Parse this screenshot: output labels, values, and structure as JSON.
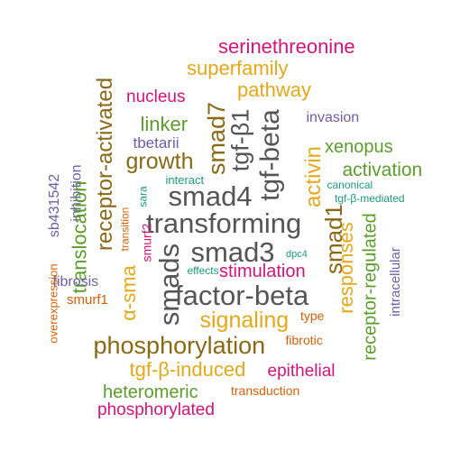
{
  "colors": {
    "gray": "#555555",
    "brown": "#8B6914",
    "gold": "#E6A817",
    "green": "#5A9E2A",
    "magenta": "#D4137A",
    "purple": "#6A5FA8",
    "teal": "#1A9E77",
    "orange": "#D95F02"
  },
  "words": [
    {
      "text": "serinethreonine",
      "color": "magenta",
      "rotated": false
    },
    {
      "text": "superfamily",
      "color": "gold",
      "rotated": false
    },
    {
      "text": "pathway",
      "color": "gold",
      "rotated": false
    },
    {
      "text": "nucleus",
      "color": "magenta",
      "rotated": false
    },
    {
      "text": "receptor-activated",
      "color": "brown",
      "rotated": true
    },
    {
      "text": "smad7",
      "color": "brown",
      "rotated": true
    },
    {
      "text": "tgf-β1",
      "color": "gray",
      "rotated": true
    },
    {
      "text": "tgf-beta",
      "color": "gray",
      "rotated": true
    },
    {
      "text": "invasion",
      "color": "purple",
      "rotated": false
    },
    {
      "text": "linker",
      "color": "green",
      "rotated": false
    },
    {
      "text": "tbetarii",
      "color": "purple",
      "rotated": false
    },
    {
      "text": "growth",
      "color": "brown",
      "rotated": false
    },
    {
      "text": "activin",
      "color": "gold",
      "rotated": true
    },
    {
      "text": "xenopus",
      "color": "green",
      "rotated": false
    },
    {
      "text": "activation",
      "color": "green",
      "rotated": false
    },
    {
      "text": "canonical",
      "color": "teal",
      "rotated": false
    },
    {
      "text": "tgf-β-mediated",
      "color": "teal",
      "rotated": false
    },
    {
      "text": "inhibition",
      "color": "purple",
      "rotated": true
    },
    {
      "text": "sb431542",
      "color": "purple",
      "rotated": true
    },
    {
      "text": "translocation",
      "color": "green",
      "rotated": true
    },
    {
      "text": "interact",
      "color": "teal",
      "rotated": false
    },
    {
      "text": "sara",
      "color": "teal",
      "rotated": true
    },
    {
      "text": "smad4",
      "color": "gray",
      "rotated": false
    },
    {
      "text": "transforming",
      "color": "gray",
      "rotated": false
    },
    {
      "text": "smad1",
      "color": "brown",
      "rotated": true
    },
    {
      "text": "transition",
      "color": "orange",
      "rotated": true
    },
    {
      "text": "smurf2",
      "color": "magenta",
      "rotated": true
    },
    {
      "text": "smad3",
      "color": "gray",
      "rotated": false
    },
    {
      "text": "dpc4",
      "color": "teal",
      "rotated": false
    },
    {
      "text": "responses",
      "color": "gold",
      "rotated": true
    },
    {
      "text": "receptor-regulated",
      "color": "green",
      "rotated": true
    },
    {
      "text": "intracellular",
      "color": "purple",
      "rotated": true
    },
    {
      "text": "fibrosis",
      "color": "purple",
      "rotated": false
    },
    {
      "text": "smurf1",
      "color": "orange",
      "rotated": false
    },
    {
      "text": "overexpression",
      "color": "orange",
      "rotated": true
    },
    {
      "text": "α-sma",
      "color": "gold",
      "rotated": true
    },
    {
      "text": "smads",
      "color": "gray",
      "rotated": true
    },
    {
      "text": "effects",
      "color": "teal",
      "rotated": false
    },
    {
      "text": "stimulation",
      "color": "magenta",
      "rotated": false
    },
    {
      "text": "factor-beta",
      "color": "gray",
      "rotated": false
    },
    {
      "text": "signaling",
      "color": "gold",
      "rotated": false
    },
    {
      "text": "type",
      "color": "orange",
      "rotated": false
    },
    {
      "text": "phosphorylation",
      "color": "brown",
      "rotated": false
    },
    {
      "text": "fibrotic",
      "color": "orange",
      "rotated": false
    },
    {
      "text": "tgf-β-induced",
      "color": "gold",
      "rotated": false
    },
    {
      "text": "epithelial",
      "color": "magenta",
      "rotated": false
    },
    {
      "text": "heteromeric",
      "color": "green",
      "rotated": false
    },
    {
      "text": "transduction",
      "color": "orange",
      "rotated": false
    },
    {
      "text": "phosphorylated",
      "color": "magenta",
      "rotated": false
    }
  ]
}
